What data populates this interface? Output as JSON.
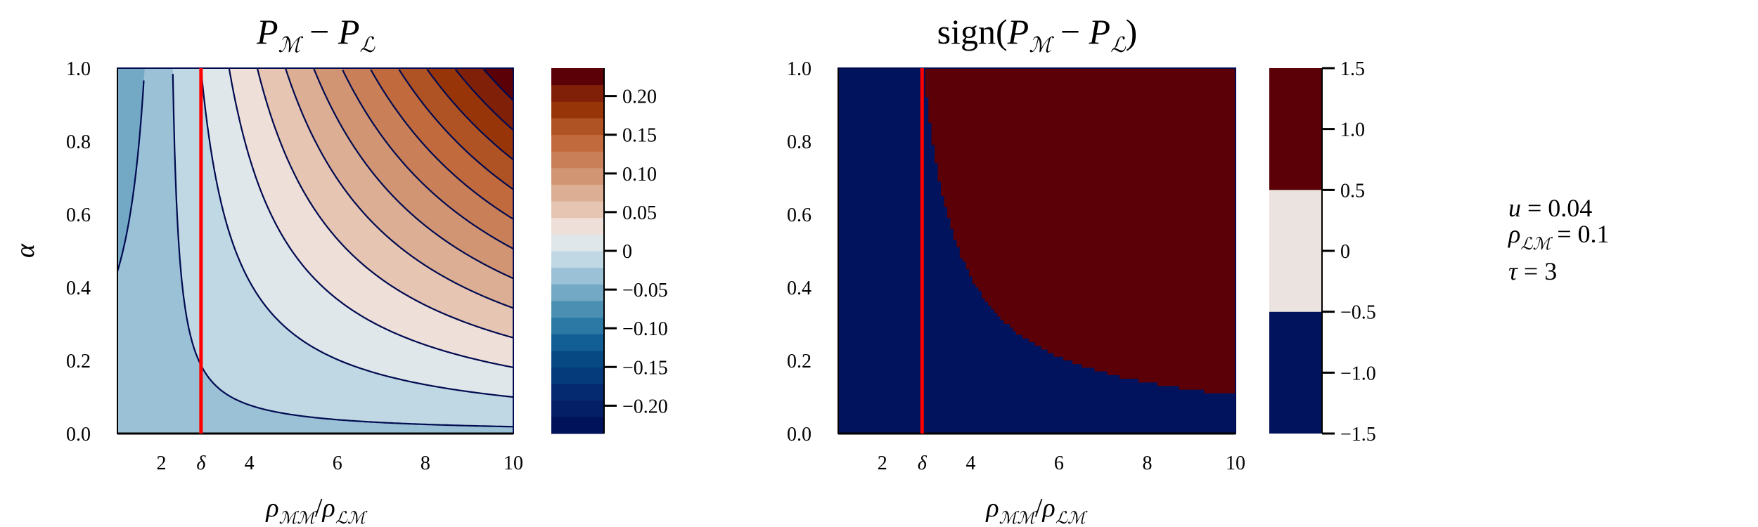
{
  "chart_data": [
    {
      "type": "heatmap",
      "subtype": "filled-contour",
      "title_parts": {
        "p1": "P",
        "s1": "ℳ",
        "minus": " − ",
        "p2": "P",
        "s2": "ℒ"
      },
      "xlabel_parts": {
        "rho1": "ρ",
        "s1": "ℳℳ",
        "slash": "/",
        "rho2": "ρ",
        "s2": "ℒℳ"
      },
      "ylabel": "α",
      "xlim": [
        1,
        10
      ],
      "ylim": [
        0,
        1
      ],
      "xticks": [
        "2",
        "4",
        "6",
        "8",
        "10"
      ],
      "xtick_values": [
        2,
        4,
        6,
        8,
        10
      ],
      "yticks": [
        "0.0",
        "0.2",
        "0.4",
        "0.6",
        "0.8",
        "1.0"
      ],
      "ytick_values": [
        0,
        0.2,
        0.4,
        0.6,
        0.8,
        1.0
      ],
      "delta_label": "δ",
      "delta_x": 2.9,
      "delta_color": "#ff0000",
      "contour_line_color": "#000a50",
      "surface_approx": {
        "A": 0.0335,
        "c": 2.11,
        "B": 0.0264
      },
      "colorbar": {
        "range": [
          -0.236,
          0.236
        ],
        "n_bands": 22,
        "colors": [
          "#00125a",
          "#041f65",
          "#062a70",
          "#053a7b",
          "#074a83",
          "#125f95",
          "#2b79a4",
          "#4b8fb3",
          "#73a9c5",
          "#9ac1d6",
          "#bfd8e3",
          "#dfe7ea",
          "#eedfd8",
          "#e6c5b2",
          "#dcae94",
          "#d29574",
          "#c98059",
          "#c06a3d",
          "#b05324",
          "#983508",
          "#802008",
          "#5a0006"
        ],
        "ticks": [
          "−0.20",
          "−0.15",
          "−0.10",
          "−0.05",
          "0",
          "0.05",
          "0.10",
          "0.15",
          "0.20"
        ],
        "tick_values": [
          -0.2,
          -0.15,
          -0.1,
          -0.05,
          0,
          0.05,
          0.1,
          0.15,
          0.2
        ]
      }
    },
    {
      "type": "heatmap",
      "subtype": "sign",
      "title_parts": {
        "pre": "sign(",
        "p1": "P",
        "s1": "ℳ",
        "minus": " − ",
        "p2": "P",
        "s2": "ℒ",
        "post": ")"
      },
      "xlabel_parts": {
        "rho1": "ρ",
        "s1": "ℳℳ",
        "slash": "/",
        "rho2": "ρ",
        "s2": "ℒℳ"
      },
      "xlim": [
        1,
        10
      ],
      "ylim": [
        0,
        1
      ],
      "xticks": [
        "2",
        "4",
        "6",
        "8",
        "10"
      ],
      "xtick_values": [
        2,
        4,
        6,
        8,
        10
      ],
      "yticks": [
        "0.0",
        "0.2",
        "0.4",
        "0.6",
        "0.8",
        "1.0"
      ],
      "ytick_values": [
        0,
        0.2,
        0.4,
        0.6,
        0.8,
        1.0
      ],
      "delta_label": "δ",
      "delta_x": 2.9,
      "values_present": [
        -1,
        1
      ],
      "colorbar": {
        "range": [
          -1.5,
          1.5
        ],
        "bands": [
          {
            "from": -1.5,
            "to": -0.5,
            "color": "#00135c"
          },
          {
            "from": -0.5,
            "to": 0.5,
            "color": "#ebe3df"
          },
          {
            "from": 0.5,
            "to": 1.5,
            "color": "#5a0006"
          }
        ],
        "ticks": [
          "−1.5",
          "−1.0",
          "−0.5",
          "0",
          "0.5",
          "1.0",
          "1.5"
        ],
        "tick_values": [
          -1.5,
          -1.0,
          -0.5,
          0,
          0.5,
          1.0,
          1.5
        ]
      }
    }
  ],
  "annotation": {
    "u_var": "u",
    "u_eq": " = 0.04",
    "rho_var": "ρ",
    "rho_sub": "ℒℳ",
    "rho_eq": " = 0.1",
    "tau_var": "τ",
    "tau_eq": " = 3"
  }
}
